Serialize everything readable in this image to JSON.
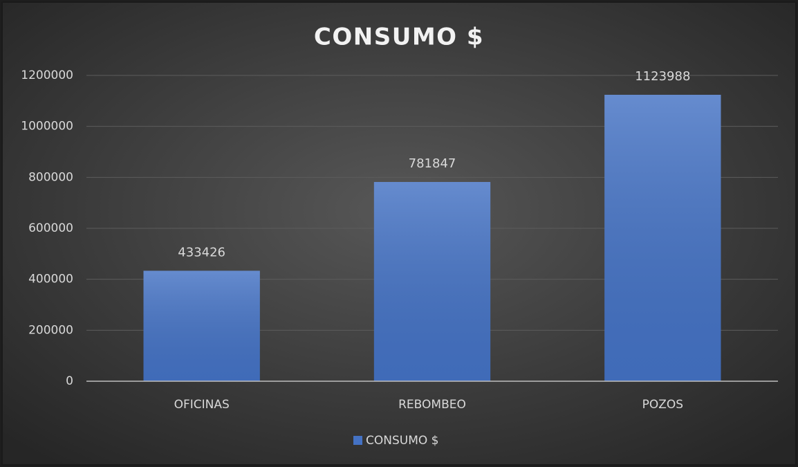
{
  "chart_data": {
    "type": "bar",
    "title": "CONSUMO $",
    "categories": [
      "OFICINAS",
      "REBOMBEO",
      "POZOS"
    ],
    "series": [
      {
        "name": "CONSUMO $",
        "color": "#4472c4",
        "values": [
          433426,
          781847,
          1123988
        ]
      }
    ],
    "ylim": [
      0,
      1200000
    ],
    "yticks": [
      0,
      200000,
      400000,
      600000,
      800000,
      1000000,
      1200000
    ],
    "grid": true,
    "legend": "bottom",
    "data_labels": true
  }
}
